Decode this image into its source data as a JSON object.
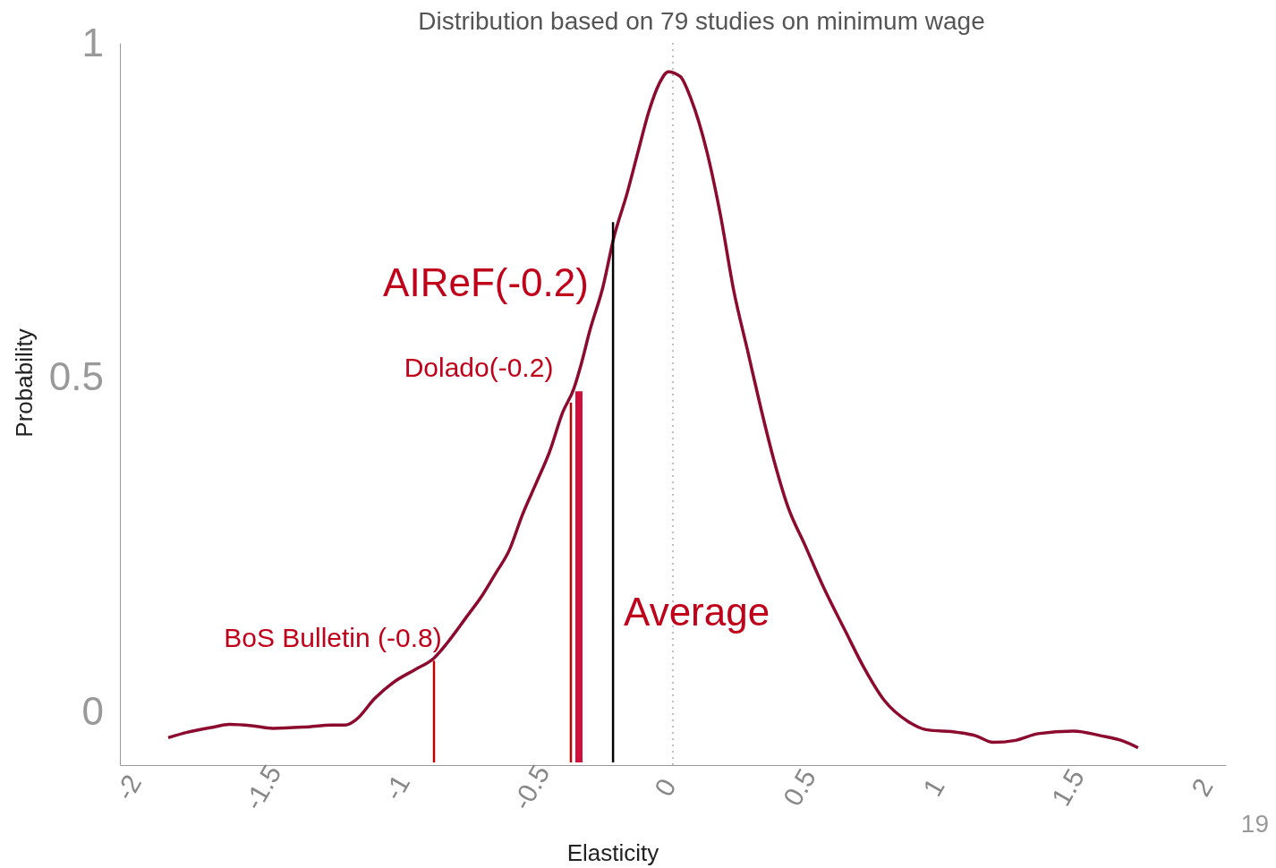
{
  "chart_data": {
    "type": "line",
    "title": "Distribution based on 79 studies on minimum wage",
    "xlabel": "Elasticity",
    "ylabel": "Probability",
    "xlim": [
      -2.06,
      2.06
    ],
    "xticks": [
      -2,
      -1.5,
      -1,
      -0.5,
      0,
      0.5,
      1,
      1.5,
      2
    ],
    "ylim": [
      -0.08,
      1
    ],
    "yticks": [
      0,
      0.5,
      1
    ],
    "grid": false,
    "marker": "none",
    "line_style": "solid",
    "series": [
      {
        "color": "#8b0a2e",
        "x": [
          -1.88,
          -1.81,
          -1.71,
          -1.65,
          -1.57,
          -1.49,
          -1.37,
          -1.27,
          -1.22,
          -1.18,
          -1.11,
          -1.04,
          -0.96,
          -0.89,
          -0.84,
          -0.77,
          -0.71,
          -0.66,
          -0.61,
          -0.56,
          -0.51,
          -0.46,
          -0.41,
          -0.37,
          -0.34,
          -0.31,
          -0.26,
          -0.22,
          -0.17,
          -0.13,
          -0.09,
          -0.05,
          -0.017,
          0.027,
          0.067,
          0.127,
          0.177,
          0.227,
          0.277,
          0.327,
          0.377,
          0.427,
          0.493,
          0.56,
          0.643,
          0.71,
          0.787,
          0.877,
          0.943,
          1.06,
          1.127,
          1.193,
          1.277,
          1.36,
          1.493,
          1.593,
          1.677,
          1.733
        ],
        "values": [
          -0.039,
          -0.031,
          -0.023,
          -0.019,
          -0.021,
          -0.025,
          -0.023,
          -0.02,
          -0.02,
          -0.012,
          0.02,
          0.044,
          0.063,
          0.08,
          0.103,
          0.141,
          0.174,
          0.207,
          0.241,
          0.295,
          0.341,
          0.388,
          0.448,
          0.482,
          0.522,
          0.569,
          0.636,
          0.709,
          0.776,
          0.837,
          0.897,
          0.94,
          0.957,
          0.95,
          0.917,
          0.837,
          0.743,
          0.629,
          0.542,
          0.455,
          0.375,
          0.308,
          0.248,
          0.187,
          0.12,
          0.067,
          0.017,
          -0.015,
          -0.027,
          -0.031,
          -0.036,
          -0.046,
          -0.043,
          -0.033,
          -0.029,
          -0.036,
          -0.044,
          -0.054
        ]
      },
      {
        "color": "#c00000",
        "x": [
          -0.89,
          -0.89
        ],
        "values": [
          -0.076,
          0.076
        ]
      },
      {
        "color": "#c00000",
        "x": [
          -0.38,
          -0.38
        ],
        "values": [
          -0.076,
          0.462
        ]
      },
      {
        "color": "#d0103a",
        "x": [
          -0.35,
          -0.35
        ],
        "values": [
          -0.076,
          0.479
        ]
      },
      {
        "color": "#000000",
        "x": [
          -0.223,
          -0.223
        ],
        "values": [
          -0.076,
          0.732
        ]
      }
    ],
    "ref_lines": [
      {
        "axis": "x",
        "value": 0,
        "color": "#aaaaaa",
        "line_style": "dotted"
      }
    ],
    "annotations": [
      {
        "text": "BoS Bulletin (-0.8)",
        "x": -0.89,
        "y": 0.076
      },
      {
        "text": "Dolado(-0.2)",
        "x": -0.38,
        "y": 0.462
      },
      {
        "text": "AIReF(-0.2)",
        "x": -0.35,
        "y": 0.479
      },
      {
        "text": "Average",
        "x": -0.223,
        "y": 0.15
      },
      "19"
    ]
  }
}
